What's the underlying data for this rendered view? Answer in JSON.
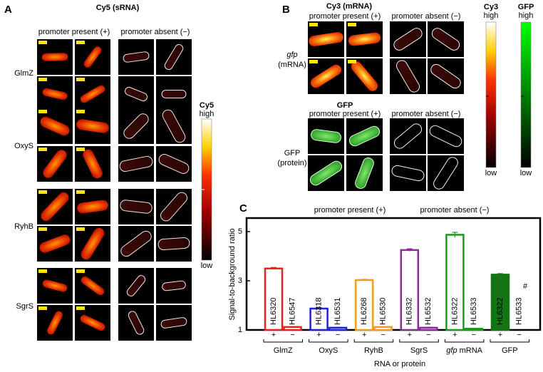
{
  "panel_a": {
    "label": "A",
    "title": "Cy5 (sRNA)",
    "column_headers": [
      "promoter present (+)",
      "promoter absent (−)"
    ],
    "rows": [
      "GlmZ",
      "OxyS",
      "RyhB",
      "SgrS"
    ],
    "colorbar": {
      "title": "Cy5",
      "high": "high",
      "low": "low"
    }
  },
  "panel_b": {
    "label": "B",
    "title": "Cy3 (mRNA)",
    "column_headers": [
      "promoter present (+)",
      "promoter absent (−)"
    ],
    "row_1": {
      "italic": "gfp",
      "label": "(mRNA)"
    },
    "subtitle": "GFP",
    "column_headers_2": [
      "promoter present (+)",
      "promoter absent (−)"
    ],
    "row_2": {
      "name": "GFP",
      "label": "(protein)"
    },
    "colorbars": [
      {
        "title": "Cy3",
        "high": "high",
        "low": "low"
      },
      {
        "title": "GFP",
        "high": "high",
        "low": "low"
      }
    ]
  },
  "chart_data": {
    "type": "bar",
    "label": "C",
    "headers": [
      "promoter present (+)",
      "promoter absent (−)"
    ],
    "y_label": "Signal-to-background ratio",
    "x_label": "RNA or protein",
    "categories": [
      "HL6320",
      "HL6547",
      "HL6318",
      "HL6531",
      "HL6268",
      "HL6530",
      "HL6332",
      "HL6532",
      "HL6322",
      "HL6533",
      "HL6322",
      "HL6533"
    ],
    "signs": [
      "+",
      "−",
      "+",
      "−",
      "+",
      "−",
      "+",
      "−",
      "+",
      "−",
      "+",
      "−"
    ],
    "values": [
      3.5,
      1.12,
      1.87,
      1.09,
      3.03,
      1.12,
      4.25,
      1.09,
      4.87,
      1.05,
      3.25,
      null
    ],
    "errors": [
      0.04,
      0.02,
      0.03,
      0.02,
      0.03,
      0.02,
      0.05,
      0.02,
      0.1,
      0.02,
      0.04,
      null
    ],
    "colors": [
      "#e8201e",
      "#e8201e",
      "#1f22d0",
      "#1f22d0",
      "#f39a22",
      "#f39a22",
      "#8b2a96",
      "#8b2a96",
      "#1c9a1c",
      "#1c9a1c",
      "#137513",
      "#137513"
    ],
    "filled": [
      false,
      false,
      false,
      false,
      false,
      false,
      false,
      false,
      false,
      false,
      true,
      true
    ],
    "groups": [
      {
        "label": "GlmZ"
      },
      {
        "label": "OxyS"
      },
      {
        "label": "RyhB"
      },
      {
        "label": "SgrS"
      },
      {
        "italic": "gfp",
        "label": "mRNA"
      },
      {
        "label": "GFP"
      }
    ],
    "annotation": "#",
    "ylim": [
      1,
      5.55
    ],
    "yticks": [
      1,
      3,
      5
    ]
  }
}
